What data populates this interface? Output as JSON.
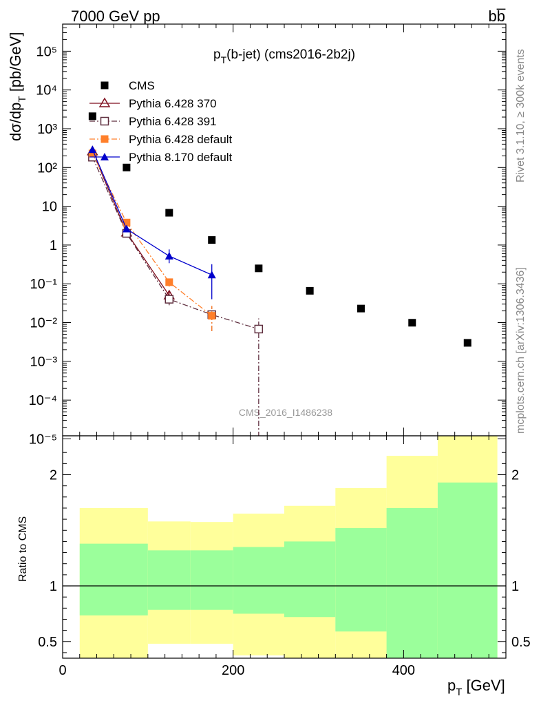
{
  "header": {
    "left": "7000 GeV pp",
    "right": "bb̅"
  },
  "side_text": {
    "rivet": "Rivet 3.1.10, ≥ 300k events",
    "mcplots": "mcplots.cern.ch [arXiv:1306.3436]"
  },
  "watermark": "CMS_2016_I1486238",
  "chart_data": {
    "type": "scatter",
    "title": "p_T(b-jet) (cms2016-2b2j)",
    "title_main": "p",
    "title_sub": "T",
    "title_rest": "(b-jet) (cms2016-2b2j)",
    "xlabel": "p_T [GeV]",
    "xlabel_main": "p",
    "xlabel_sub": "T",
    "xlabel_rest": " [GeV]",
    "ylabel": "dσ/dp_T [pb/GeV]",
    "ylabel_main": "dσ/dp",
    "ylabel_sub": "T",
    "ylabel_rest": " [pb/GeV]",
    "ratio_ylabel": "Ratio to CMS",
    "xlim": [
      0,
      520
    ],
    "ylim": [
      1.2e-05,
      500000
    ],
    "yscale": "log",
    "ratio_ylim": [
      0.35,
      2.35
    ],
    "x_ticks": [
      "0",
      "200",
      "400"
    ],
    "y_ticks": [
      "10⁻⁵",
      "10⁻⁴",
      "10⁻³",
      "10⁻²",
      "10⁻¹",
      "1",
      "10",
      "10²",
      "10³",
      "10⁴",
      "10⁵"
    ],
    "ratio_ticks": [
      "0.5",
      "1",
      "2"
    ],
    "legend_position": "top-left",
    "series": [
      {
        "name": "CMS",
        "color": "#000000",
        "marker": "square-filled",
        "x": [
          35,
          75,
          125,
          175,
          230,
          290,
          350,
          410,
          475
        ],
        "y": [
          2100,
          100,
          6.8,
          1.35,
          0.25,
          0.066,
          0.023,
          0.0099,
          0.003
        ]
      },
      {
        "name": "Pythia 6.428 370",
        "color": "#7f0f1f",
        "marker": "triangle-open",
        "line": "solid",
        "x": [
          35,
          75,
          125
        ],
        "y": [
          260,
          2.1,
          0.05
        ],
        "yerr_lo": [
          0,
          0,
          0.015
        ],
        "yerr_hi": [
          0,
          0,
          0.015
        ]
      },
      {
        "name": "Pythia 6.428 391",
        "color": "#5f2f3f",
        "marker": "square-open",
        "line": "dash-dot",
        "x": [
          35,
          75,
          125,
          175,
          230
        ],
        "y": [
          185,
          2.0,
          0.04,
          0.016,
          0.0068
        ],
        "yerr_lo": [
          0,
          0,
          0.012,
          0.01,
          0.0068
        ],
        "yerr_hi": [
          0,
          0,
          0.012,
          0.01,
          0.006
        ]
      },
      {
        "name": "Pythia 6.428 default",
        "color": "#ff7f2a",
        "marker": "square-filled",
        "line": "dash-dot",
        "x": [
          35,
          75,
          125,
          175
        ],
        "y": [
          230,
          3.8,
          0.11,
          0.015
        ],
        "yerr_lo": [
          0,
          0,
          0.025,
          0.009
        ],
        "yerr_hi": [
          0,
          0,
          0.025,
          0.012
        ]
      },
      {
        "name": "Pythia 8.170 default",
        "color": "#0000cc",
        "marker": "triangle-filled",
        "line": "solid",
        "x": [
          35,
          75,
          125,
          175
        ],
        "y": [
          290,
          2.6,
          0.52,
          0.17
        ],
        "yerr_lo": [
          0,
          0,
          0.18,
          0.13
        ],
        "yerr_hi": [
          0,
          0,
          0.25,
          0.15
        ]
      }
    ],
    "ratio_bands": [
      {
        "x_lo": 20,
        "x_hi": 100,
        "inner_lo": 0.735,
        "inner_hi": 1.38,
        "outer_lo": 0.35,
        "outer_hi": 1.7
      },
      {
        "x_lo": 100,
        "x_hi": 150,
        "inner_lo": 0.785,
        "inner_hi": 1.32,
        "outer_lo": 0.48,
        "outer_hi": 1.58
      },
      {
        "x_lo": 150,
        "x_hi": 200,
        "inner_lo": 0.785,
        "inner_hi": 1.32,
        "outer_lo": 0.48,
        "outer_hi": 1.575
      },
      {
        "x_lo": 200,
        "x_hi": 260,
        "inner_lo": 0.75,
        "inner_hi": 1.35,
        "outer_lo": 0.375,
        "outer_hi": 1.65
      },
      {
        "x_lo": 260,
        "x_hi": 320,
        "inner_lo": 0.72,
        "inner_hi": 1.4,
        "outer_lo": 0.35,
        "outer_hi": 1.72
      },
      {
        "x_lo": 320,
        "x_hi": 380,
        "inner_lo": 0.59,
        "inner_hi": 1.52,
        "outer_lo": 0.35,
        "outer_hi": 1.88
      },
      {
        "x_lo": 380,
        "x_hi": 440,
        "inner_lo": 0.35,
        "inner_hi": 1.7,
        "outer_lo": 0.35,
        "outer_hi": 2.17
      },
      {
        "x_lo": 440,
        "x_hi": 510,
        "inner_lo": 0.35,
        "inner_hi": 1.93,
        "outer_lo": 0.35,
        "outer_hi": 2.35
      }
    ],
    "band_colors": {
      "inner": "#9bff9b",
      "outer": "#ffff9b"
    }
  }
}
